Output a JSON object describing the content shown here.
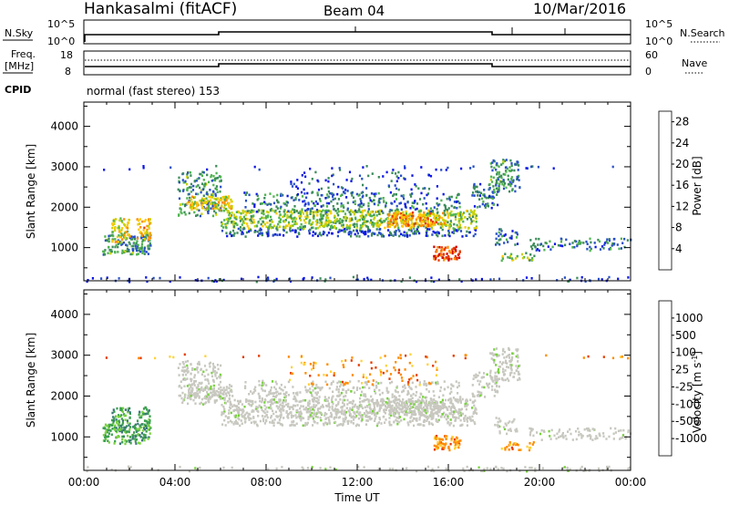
{
  "header": {
    "station": "Hankasalmi (fitACF)",
    "beam": "Beam 04",
    "date": "10/Mar/2016",
    "cpid": "normal (fast stereo) 153"
  },
  "panels": {
    "nsky": {
      "left_label": "N.Sky",
      "right_label": "N.Search",
      "left_ticks": [
        "10^5",
        "10^0"
      ],
      "right_ticks": [
        "10^5",
        "10^0"
      ]
    },
    "freq": {
      "left_label": "Freq.",
      "left_unit": "[MHz]",
      "left_ticks": [
        "18",
        "8"
      ],
      "right_label": "Nave",
      "right_ticks": [
        "60",
        "0"
      ],
      "cpid_label": "CPID"
    }
  },
  "colors": {
    "power": [
      "#0a14e6",
      "#2850c8",
      "#3c8c5a",
      "#50b450",
      "#c8d200",
      "#ffc800",
      "#ff8c00",
      "#e63c00",
      "#d20000"
    ],
    "velocity": [
      "#2840c8",
      "#3c7878",
      "#3ca050",
      "#78d23c",
      "#c8c8c0",
      "#ffd23c",
      "#ff8c00",
      "#e63c00",
      "#d20000"
    ]
  },
  "chart_data": [
    {
      "type": "heatmap",
      "title": "",
      "xlabel": "",
      "ylabel": "Slant Range [km]",
      "x_ticks": [
        "00:00",
        "04:00",
        "08:00",
        "12:00",
        "16:00",
        "20:00",
        "00:00"
      ],
      "y_ticks": [
        "4000",
        "3000",
        "2000",
        "1000"
      ],
      "xlim_hours": [
        0,
        24
      ],
      "ylim_km": [
        180,
        4600
      ],
      "colorbar": {
        "label": "Power [dB]",
        "ticks": [
          "28",
          "24",
          "20",
          "16",
          "12",
          "8",
          "4"
        ],
        "range": [
          0,
          30
        ]
      }
    },
    {
      "type": "heatmap",
      "title": "",
      "xlabel": "Time UT",
      "ylabel": "Slant Range [km]",
      "x_ticks": [
        "00:00",
        "04:00",
        "08:00",
        "12:00",
        "16:00",
        "20:00",
        "00:00"
      ],
      "y_ticks": [
        "4000",
        "3000",
        "2000",
        "1000"
      ],
      "xlim_hours": [
        0,
        24
      ],
      "ylim_km": [
        180,
        4600
      ],
      "colorbar": {
        "label": "Velocity [m s",
        "label_sup": "-1",
        "label_end": "]",
        "ticks": [
          "1000",
          "500",
          "100",
          "25",
          "-25",
          "-100",
          "-500",
          "-1000"
        ],
        "range": [
          -1000,
          1000
        ]
      }
    }
  ]
}
